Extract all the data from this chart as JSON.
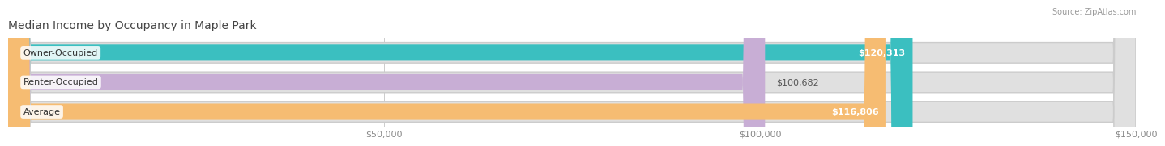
{
  "title": "Median Income by Occupancy in Maple Park",
  "source": "Source: ZipAtlas.com",
  "categories": [
    "Owner-Occupied",
    "Renter-Occupied",
    "Average"
  ],
  "values": [
    120313,
    100682,
    116806
  ],
  "bar_colors": [
    "#3bbfc0",
    "#c8aed5",
    "#f6bc72"
  ],
  "bar_labels": [
    "$120,313",
    "$100,682",
    "$116,806"
  ],
  "label_inside": [
    true,
    false,
    true
  ],
  "data_max": 150000,
  "xticks": [
    50000,
    100000,
    150000
  ],
  "xtick_labels": [
    "$50,000",
    "$100,000",
    "$150,000"
  ],
  "bar_bg_color": "#e0e0e0",
  "title_color": "#444444",
  "source_color": "#999999",
  "title_fontsize": 10,
  "label_fontsize": 8,
  "value_fontsize": 8,
  "tick_fontsize": 8,
  "cat_label_color_inside": [
    "white",
    "#666666",
    "white"
  ],
  "value_label_color": [
    "white",
    "#666666",
    "white"
  ]
}
